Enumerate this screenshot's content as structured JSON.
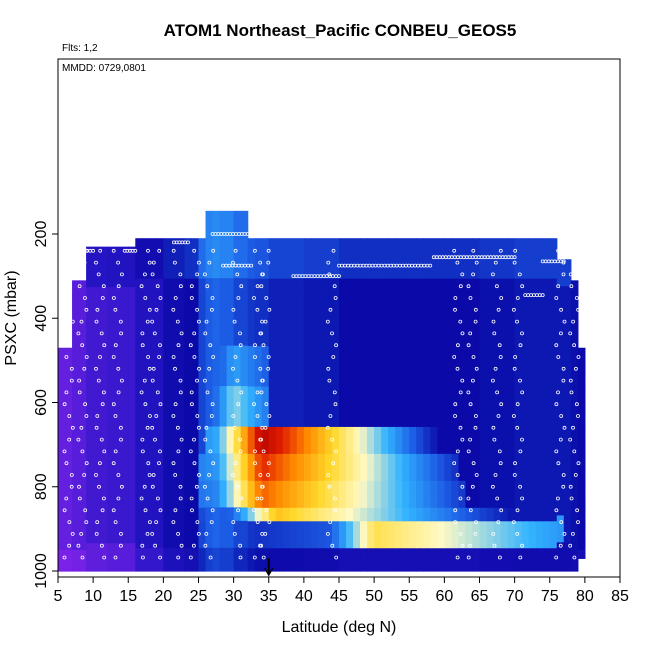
{
  "chart_data": {
    "type": "heatmap",
    "title": "ATOM1 Northeast_Pacific CONBEU_GEOS5",
    "flights_note": "Flts: 1,2",
    "dates_note": "MMDD: 0729,0801",
    "xlabel": "Latitude (deg N)",
    "ylabel": "PSXC (mbar)",
    "xlim": [
      5,
      85
    ],
    "ylim": [
      1000,
      0
    ],
    "x_ticks": [
      5,
      10,
      15,
      20,
      25,
      30,
      35,
      40,
      45,
      50,
      55,
      60,
      65,
      70,
      75,
      80,
      85
    ],
    "y_ticks": [
      200,
      400,
      600,
      800,
      1000
    ],
    "grid": false,
    "marker_latitude": 35,
    "colors": {
      "frame": "#000000",
      "track_points": "#ffffff",
      "palette": [
        "#7b22e8",
        "#2a16c8",
        "#0a0aa8",
        "#1d5fe6",
        "#32b4ff",
        "#fff9c4",
        "#ffd82a",
        "#ff8a00",
        "#e01b00",
        "#b00000"
      ]
    },
    "value_scale": "0 = low (purple) to 1 = high (dark red), relative",
    "columns": [
      {
        "lat": [
          5,
          7
        ],
        "top": 470,
        "bottom": 1000,
        "base": 0.03
      },
      {
        "lat": [
          7,
          9
        ],
        "top": 310,
        "bottom": 1000,
        "base": 0.05
      },
      {
        "lat": [
          9,
          12
        ],
        "top": 230,
        "bottom": 1000,
        "base": 0.08
      },
      {
        "lat": [
          12,
          16
        ],
        "top": 230,
        "bottom": 1000,
        "base": 0.09
      },
      {
        "lat": [
          16,
          20
        ],
        "top": 210,
        "bottom": 1000,
        "base": 0.14
      },
      {
        "lat": [
          20,
          23
        ],
        "top": 210,
        "bottom": 1000,
        "base": 0.2
      },
      {
        "lat": [
          23,
          25
        ],
        "top": 210,
        "bottom": 1000,
        "base": 0.22
      },
      {
        "lat": [
          25,
          26
        ],
        "top": 210,
        "bottom": 1000,
        "base": 0.3
      },
      {
        "lat": [
          26,
          27
        ],
        "top": 145,
        "bottom": 1000,
        "base": 0.33
      },
      {
        "lat": [
          27,
          28
        ],
        "top": 145,
        "bottom": 1000,
        "base": 0.34
      },
      {
        "lat": [
          28,
          30
        ],
        "top": 145,
        "bottom": 1000,
        "base": 0.33
      },
      {
        "lat": [
          30,
          32
        ],
        "top": 145,
        "bottom": 1000,
        "base": 0.3
      },
      {
        "lat": [
          32,
          33
        ],
        "top": 210,
        "bottom": 1000,
        "base": 0.28
      },
      {
        "lat": [
          33,
          35
        ],
        "top": 210,
        "bottom": 1000,
        "base": 0.27
      },
      {
        "lat": [
          35,
          40
        ],
        "top": 210,
        "bottom": 1000,
        "base": 0.25
      },
      {
        "lat": [
          40,
          45
        ],
        "top": 210,
        "bottom": 1000,
        "base": 0.24
      },
      {
        "lat": [
          45,
          50
        ],
        "top": 210,
        "bottom": 1000,
        "base": 0.22
      },
      {
        "lat": [
          50,
          55
        ],
        "top": 210,
        "bottom": 1000,
        "base": 0.22
      },
      {
        "lat": [
          55,
          60
        ],
        "top": 210,
        "bottom": 1000,
        "base": 0.22
      },
      {
        "lat": [
          60,
          65
        ],
        "top": 210,
        "bottom": 1000,
        "base": 0.22
      },
      {
        "lat": [
          65,
          70
        ],
        "top": 210,
        "bottom": 1000,
        "base": 0.23
      },
      {
        "lat": [
          70,
          73
        ],
        "top": 210,
        "bottom": 1000,
        "base": 0.24
      },
      {
        "lat": [
          73,
          76
        ],
        "top": 210,
        "bottom": 1000,
        "base": 0.24
      },
      {
        "lat": [
          76,
          78
        ],
        "top": 260,
        "bottom": 1000,
        "base": 0.24
      },
      {
        "lat": [
          78,
          79
        ],
        "top": 310,
        "bottom": 1000,
        "base": 0.23
      },
      {
        "lat": [
          79,
          80
        ],
        "top": 470,
        "bottom": 970,
        "base": 0.22
      }
    ],
    "layers": [
      {
        "p": [
          660,
          720
        ],
        "lat_range": [
          26,
          60
        ],
        "peak_lat": 34,
        "peak": 0.97,
        "falloff": 18
      },
      {
        "p": [
          720,
          780
        ],
        "lat_range": [
          25,
          62
        ],
        "peak_lat": 34,
        "peak": 0.88,
        "falloff": 22
      },
      {
        "p": [
          780,
          840
        ],
        "lat_range": [
          25,
          63
        ],
        "peak_lat": 34,
        "peak": 0.82,
        "falloff": 24
      },
      {
        "p": [
          840,
          880
        ],
        "lat_range": [
          25,
          70
        ],
        "peak_lat": 36,
        "peak": 0.7,
        "falloff": 28
      },
      {
        "p": [
          880,
          940
        ],
        "lat_range": [
          27,
          77
        ],
        "peak_lat": 50,
        "peak": 0.64,
        "falloff": 40
      },
      {
        "p": [
          560,
          660
        ],
        "lat_range": [
          27,
          35
        ],
        "peak_lat": 30,
        "peak": 0.5,
        "falloff": 10
      },
      {
        "p": [
          480,
          560
        ],
        "lat_range": [
          24,
          35
        ],
        "peak_lat": 30,
        "peak": 0.42,
        "falloff": 12
      }
    ],
    "flight_track": [
      {
        "lat": 27.0,
        "p": 200,
        "lat_end": 32.0,
        "p_end": 200
      },
      {
        "lat": 28.5,
        "p": 275,
        "lat_end": 32.5,
        "p_end": 275
      },
      {
        "lat": 38.5,
        "p": 300,
        "lat_end": 45.0,
        "p_end": 300
      },
      {
        "lat": 45.0,
        "p": 275,
        "lat_end": 58.0,
        "p_end": 275
      },
      {
        "lat": 58.5,
        "p": 255,
        "lat_end": 70.0,
        "p_end": 255
      },
      {
        "lat": 74.0,
        "p": 265,
        "lat_end": 77.0,
        "p_end": 265
      },
      {
        "lat": 7.5,
        "p": 240,
        "lat_end": 10.0,
        "p_end": 240
      },
      {
        "lat": 14.5,
        "p": 240,
        "lat_end": 16.0,
        "p_end": 240
      },
      {
        "lat": 21.5,
        "p": 220,
        "lat_end": 23.5,
        "p_end": 220
      },
      {
        "lat": 71.5,
        "p": 345,
        "lat_end": 74.0,
        "p_end": 345
      }
    ]
  }
}
